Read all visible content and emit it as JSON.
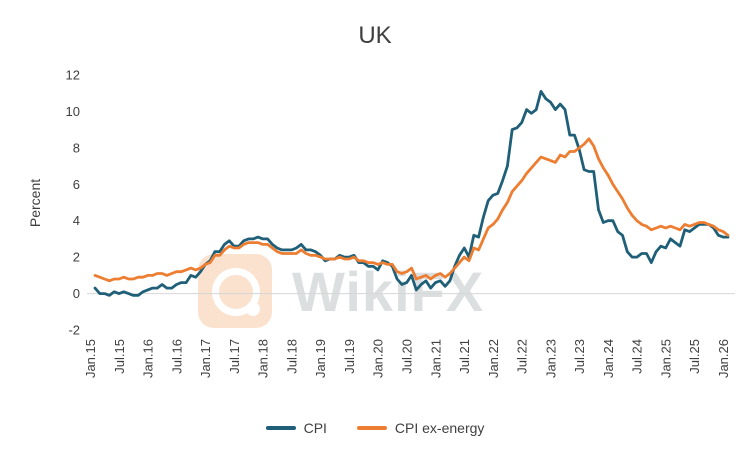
{
  "title": "UK",
  "watermark": "WikiFX",
  "legend": [
    {
      "label": "CPI",
      "color": "#1f5f78"
    },
    {
      "label": "CPI ex-energy",
      "color": "#ED7D31"
    }
  ],
  "chart_data": {
    "type": "line",
    "title": "UK",
    "xlabel": "",
    "ylabel": "Percent",
    "ylim": [
      -2,
      12
    ],
    "ytick_step": 2,
    "grid": false,
    "zero_line": true,
    "legend_position": "bottom",
    "x_tick_labels": [
      "Jan.15",
      "Jul.15",
      "Jan.16",
      "Jul.16",
      "Jan.17",
      "Jul.17",
      "Jan.18",
      "Jul.18",
      "Jan.19",
      "Jul.19",
      "Jan.20",
      "Jul.20",
      "Jan.21",
      "Jul.21",
      "Jan.22",
      "Jul.22",
      "Jan.23",
      "Jul.23",
      "Jan.24",
      "Jul.24",
      "Jan.25",
      "Jul.25",
      "Jan.26"
    ],
    "x_ticks_every_n_points": 6,
    "x_frequency": "monthly",
    "series": [
      {
        "name": "CPI",
        "color": "#1f5f78",
        "values": [
          0.3,
          0.0,
          0.0,
          -0.1,
          0.1,
          0.0,
          0.1,
          0.0,
          -0.1,
          -0.1,
          0.1,
          0.2,
          0.3,
          0.3,
          0.5,
          0.3,
          0.3,
          0.5,
          0.6,
          0.6,
          1.0,
          0.9,
          1.2,
          1.6,
          1.8,
          2.3,
          2.3,
          2.7,
          2.9,
          2.6,
          2.6,
          2.9,
          3.0,
          3.0,
          3.1,
          3.0,
          3.0,
          2.7,
          2.5,
          2.4,
          2.4,
          2.4,
          2.5,
          2.7,
          2.4,
          2.4,
          2.3,
          2.1,
          1.8,
          1.9,
          1.9,
          2.1,
          2.0,
          2.0,
          2.1,
          1.7,
          1.7,
          1.5,
          1.5,
          1.3,
          1.8,
          1.7,
          1.5,
          0.8,
          0.5,
          0.6,
          1.0,
          0.2,
          0.5,
          0.7,
          0.3,
          0.6,
          0.7,
          0.4,
          0.7,
          1.5,
          2.1,
          2.5,
          2.0,
          3.2,
          3.1,
          4.2,
          5.1,
          5.4,
          5.5,
          6.2,
          7.0,
          9.0,
          9.1,
          9.4,
          10.1,
          9.9,
          10.1,
          11.1,
          10.7,
          10.5,
          10.1,
          10.4,
          10.1,
          8.7,
          8.7,
          7.9,
          6.8,
          6.7,
          6.7,
          4.6,
          3.9,
          4.0,
          4.0,
          3.4,
          3.2,
          2.3,
          2.0,
          2.0,
          2.2,
          2.2,
          1.7,
          2.3,
          2.6,
          2.5,
          3.0,
          2.8,
          2.6,
          3.5,
          3.4,
          3.6,
          3.8,
          3.8,
          3.8,
          3.6,
          3.2,
          3.1,
          3.1
        ]
      },
      {
        "name": "CPI ex-energy",
        "color": "#ED7D31",
        "values": [
          1.0,
          0.9,
          0.8,
          0.7,
          0.8,
          0.8,
          0.9,
          0.8,
          0.8,
          0.9,
          0.9,
          1.0,
          1.0,
          1.1,
          1.1,
          1.0,
          1.1,
          1.2,
          1.2,
          1.3,
          1.4,
          1.3,
          1.4,
          1.6,
          1.7,
          2.1,
          2.1,
          2.4,
          2.6,
          2.5,
          2.5,
          2.7,
          2.8,
          2.8,
          2.8,
          2.7,
          2.7,
          2.5,
          2.3,
          2.2,
          2.2,
          2.2,
          2.2,
          2.4,
          2.2,
          2.1,
          2.1,
          2.0,
          1.9,
          1.9,
          1.9,
          2.0,
          1.9,
          1.9,
          2.0,
          1.8,
          1.8,
          1.7,
          1.7,
          1.6,
          1.7,
          1.6,
          1.6,
          1.2,
          1.1,
          1.2,
          1.4,
          0.8,
          0.9,
          1.0,
          0.8,
          1.0,
          1.1,
          0.9,
          1.1,
          1.4,
          1.7,
          2.0,
          1.8,
          2.5,
          2.4,
          3.0,
          3.6,
          3.8,
          4.1,
          4.6,
          5.0,
          5.6,
          5.9,
          6.2,
          6.6,
          6.9,
          7.2,
          7.5,
          7.4,
          7.3,
          7.2,
          7.6,
          7.5,
          7.8,
          7.8,
          8.0,
          8.2,
          8.5,
          8.1,
          7.4,
          6.9,
          6.5,
          6.0,
          5.6,
          5.2,
          4.7,
          4.3,
          4.0,
          3.8,
          3.7,
          3.5,
          3.6,
          3.7,
          3.6,
          3.7,
          3.6,
          3.5,
          3.8,
          3.7,
          3.8,
          3.9,
          3.9,
          3.8,
          3.7,
          3.5,
          3.4,
          3.2
        ]
      }
    ]
  }
}
